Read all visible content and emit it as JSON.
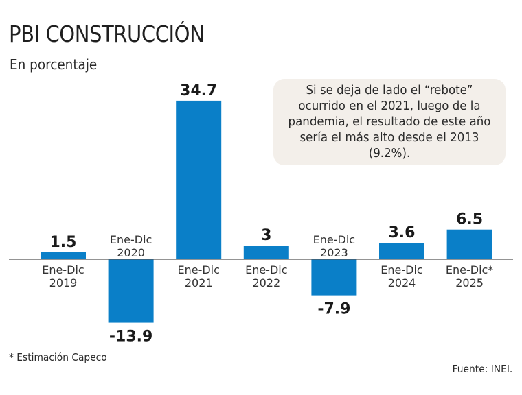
{
  "header": {
    "title": "PBI CONSTRUCCIÓN",
    "subtitle": "En porcentaje"
  },
  "note": {
    "text": "Si se deja de lado el “rebote” ocurrido en el 2021, luego de la pandemia, el resultado de este año sería el más alto desde el 2013 (9.2%)."
  },
  "footer": {
    "footnote": "* Estimación Capeco",
    "source": "Fuente: INEI."
  },
  "colors": {
    "bar": "#0a7fc8",
    "axis": "#555555",
    "note_bg": "#f3efea"
  },
  "chart_data": {
    "type": "bar",
    "title": "PBI CONSTRUCCIÓN",
    "subtitle": "En porcentaje",
    "xlabel": "",
    "ylabel": "",
    "categories": [
      [
        "Ene-Dic",
        "2019"
      ],
      [
        "Ene-Dic",
        "2020"
      ],
      [
        "Ene-Dic",
        "2021"
      ],
      [
        "Ene-Dic",
        "2022"
      ],
      [
        "Ene-Dic",
        "2023"
      ],
      [
        "Ene-Dic",
        "2024"
      ],
      [
        "Ene-Dic*",
        "2025"
      ]
    ],
    "values": [
      1.5,
      -13.9,
      34.7,
      3,
      -7.9,
      3.6,
      6.5
    ],
    "value_labels": [
      "1.5",
      "-13.9",
      "34.7",
      "3",
      "-7.9",
      "3.6",
      "6.5"
    ],
    "ylim": [
      -13.9,
      34.7
    ],
    "grid": false,
    "annotations": [
      "* Estimación Capeco",
      "Fuente: INEI."
    ]
  }
}
